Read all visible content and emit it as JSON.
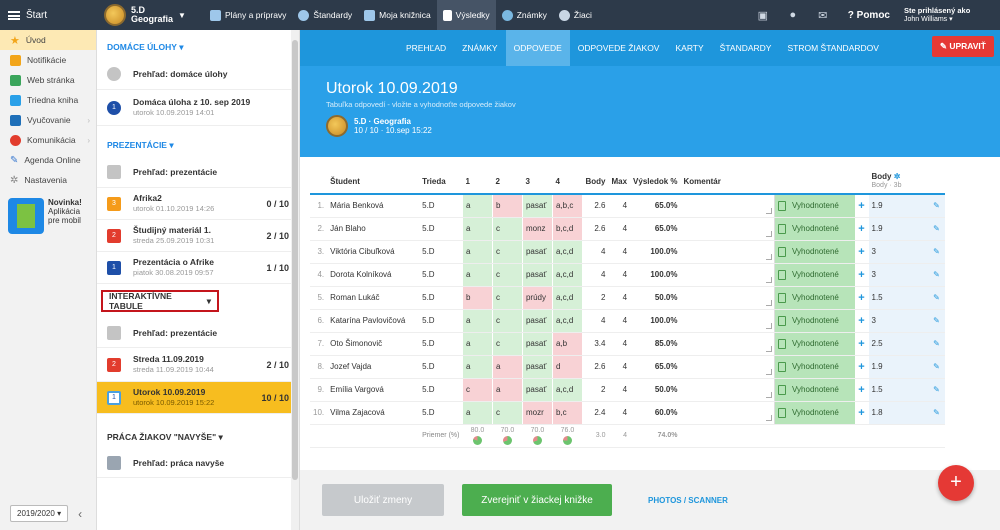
{
  "topbar": {
    "start": "Štart",
    "class_name": "5.D",
    "class_subject": "Geografia",
    "items": [
      "Plány a prípravy",
      "Štandardy",
      "Moja knižnica",
      "Výsledky",
      "Známky",
      "Žiaci"
    ],
    "help": "Pomoc",
    "user_label": "Ste prihlásený ako",
    "user_name": "John Williams"
  },
  "leftnav": {
    "items": [
      "Úvod",
      "Notifikácie",
      "Web stránka",
      "Triedna kniha",
      "Vyučovanie",
      "Komunikácia",
      "Agenda Online",
      "Nastavenia"
    ],
    "promo_title": "Novinka!",
    "promo_line1": "Aplikácia",
    "promo_line2": "pre mobil",
    "year": "2019/2020",
    "year_arrow": "▾",
    "collapse": "‹"
  },
  "middle": {
    "s1": "DOMÁCE ÚLOHY",
    "s1_rows": [
      {
        "title": "Prehľad: domáce úlohy",
        "sub": "",
        "score": ""
      },
      {
        "title": "Domáca úloha z 10. sep 2019",
        "sub": "utorok 10.09.2019 14:01",
        "score": ""
      }
    ],
    "s2": "PREZENTÁCIE",
    "s2_rows": [
      {
        "title": "Prehľad: prezentácie",
        "sub": "",
        "score": ""
      },
      {
        "title": "Afrika2",
        "sub": "utorok 01.10.2019 14:26",
        "score": "0 / 10"
      },
      {
        "title": "Študijný materiál 1.",
        "sub": "streda 25.09.2019 10:31",
        "score": "2 / 10"
      },
      {
        "title": "Prezentácia o Afrike",
        "sub": "piatok 30.08.2019 09:57",
        "score": "1 / 10"
      }
    ],
    "s3": "INTERAKTÍVNE TABULE",
    "s3_rows": [
      {
        "title": "Prehľad: prezentácie",
        "sub": "",
        "score": ""
      },
      {
        "title": "Streda 11.09.2019",
        "sub": "streda 11.09.2019 10:44",
        "score": "2 / 10"
      },
      {
        "title": "Utorok 10.09.2019",
        "sub": "utorok 10.09.2019 15:22",
        "score": "10 / 10"
      }
    ],
    "s4": "PRÁCA ŽIAKOV \"NAVYŠE\"",
    "s4_rows": [
      {
        "title": "Prehľad: práca navyše",
        "sub": "",
        "score": ""
      }
    ]
  },
  "tabs": [
    "PREHĽAD",
    "ZNÁMKY",
    "ODPOVEDE",
    "ODPOVEDE ŽIAKOV",
    "KARTY",
    "ŠTANDARDY",
    "STROM ŠTANDARDOV"
  ],
  "upravit": "UPRAVIŤ",
  "banner": {
    "title": "Utorok 10.09.2019",
    "subtitle": "Tabuľka odpovedí - vložte a vyhodnoťte odpovede žiakov",
    "class": "5.D · Geografia",
    "meta": "10 / 10 · 10.sep 15:22"
  },
  "table": {
    "headers": [
      "Študent",
      "Trieda",
      "1",
      "2",
      "3",
      "4",
      "Body",
      "Max",
      "Výsledok %",
      "Komentár"
    ],
    "body_header": "Body",
    "body_sub": "Body · 3b",
    "status": "Vyhodnotené",
    "rows": [
      {
        "n": "1.",
        "name": "Mária Benková",
        "cls": "5.D",
        "a": [
          [
            "a",
            "ok"
          ],
          [
            "b",
            "bad"
          ],
          [
            "pasať",
            "ok"
          ],
          [
            "a,b,c",
            "bad"
          ]
        ],
        "body": "2.6",
        "max": "4",
        "pct": "65.0%",
        "pts": "1.9"
      },
      {
        "n": "2.",
        "name": "Ján Blaho",
        "cls": "5.D",
        "a": [
          [
            "a",
            "ok"
          ],
          [
            "c",
            "ok"
          ],
          [
            "monz",
            "bad"
          ],
          [
            "b,c,d",
            "bad"
          ]
        ],
        "body": "2.6",
        "max": "4",
        "pct": "65.0%",
        "pts": "1.9"
      },
      {
        "n": "3.",
        "name": "Viktória Cibuľková",
        "cls": "5.D",
        "a": [
          [
            "a",
            "ok"
          ],
          [
            "c",
            "ok"
          ],
          [
            "pasať",
            "ok"
          ],
          [
            "a,c,d",
            "ok"
          ]
        ],
        "body": "4",
        "max": "4",
        "pct": "100.0%",
        "pts": "3"
      },
      {
        "n": "4.",
        "name": "Dorota Kolníková",
        "cls": "5.D",
        "a": [
          [
            "a",
            "ok"
          ],
          [
            "c",
            "ok"
          ],
          [
            "pasať",
            "ok"
          ],
          [
            "a,c,d",
            "ok"
          ]
        ],
        "body": "4",
        "max": "4",
        "pct": "100.0%",
        "pts": "3"
      },
      {
        "n": "5.",
        "name": "Roman Lukáč",
        "cls": "5.D",
        "a": [
          [
            "b",
            "bad"
          ],
          [
            "c",
            "ok"
          ],
          [
            "prúdy",
            "bad"
          ],
          [
            "a,c,d",
            "ok"
          ]
        ],
        "body": "2",
        "max": "4",
        "pct": "50.0%",
        "pts": "1.5"
      },
      {
        "n": "6.",
        "name": "Katarína Pavlovičová",
        "cls": "5.D",
        "a": [
          [
            "a",
            "ok"
          ],
          [
            "c",
            "ok"
          ],
          [
            "pasať",
            "ok"
          ],
          [
            "a,c,d",
            "ok"
          ]
        ],
        "body": "4",
        "max": "4",
        "pct": "100.0%",
        "pts": "3"
      },
      {
        "n": "7.",
        "name": "Oto Šimonovič",
        "cls": "5.D",
        "a": [
          [
            "a",
            "ok"
          ],
          [
            "c",
            "ok"
          ],
          [
            "pasať",
            "ok"
          ],
          [
            "a,b",
            "bad"
          ]
        ],
        "body": "3.4",
        "max": "4",
        "pct": "85.0%",
        "pts": "2.5"
      },
      {
        "n": "8.",
        "name": "Jozef Vajda",
        "cls": "5.D",
        "a": [
          [
            "a",
            "ok"
          ],
          [
            "a",
            "bad"
          ],
          [
            "pasať",
            "ok"
          ],
          [
            "d",
            "bad"
          ]
        ],
        "body": "2.6",
        "max": "4",
        "pct": "65.0%",
        "pts": "1.9"
      },
      {
        "n": "9.",
        "name": "Emília Vargová",
        "cls": "5.D",
        "a": [
          [
            "c",
            "bad"
          ],
          [
            "a",
            "bad"
          ],
          [
            "pasať",
            "ok"
          ],
          [
            "a,c,d",
            "ok"
          ]
        ],
        "body": "2",
        "max": "4",
        "pct": "50.0%",
        "pts": "1.5"
      },
      {
        "n": "10.",
        "name": "Vilma Zajacová",
        "cls": "5.D",
        "a": [
          [
            "a",
            "ok"
          ],
          [
            "c",
            "ok"
          ],
          [
            "mozr",
            "bad"
          ],
          [
            "b,c",
            "bad"
          ]
        ],
        "body": "2.4",
        "max": "4",
        "pct": "60.0%",
        "pts": "1.8"
      }
    ],
    "avg_label": "Priemer (%)",
    "avgs": [
      {
        "v": "80.0",
        "p": 80
      },
      {
        "v": "70.0",
        "p": 70
      },
      {
        "v": "70.0",
        "p": 70
      },
      {
        "v": "76.0",
        "p": 76
      }
    ],
    "avg_body": "3.0",
    "avg_max": "4",
    "avg_pct": "74.0%"
  },
  "bottom": {
    "save": "Uložiť zmeny",
    "publish": "Zverejniť v žiackej knižke",
    "photos": "PHOTOS / SCANNER"
  },
  "fab": "+"
}
